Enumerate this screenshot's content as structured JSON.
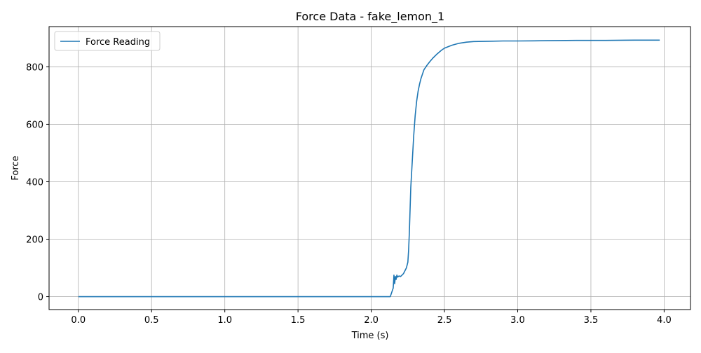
{
  "chart_data": {
    "type": "line",
    "title": "Force Data - fake_lemon_1",
    "xlabel": "Time (s)",
    "ylabel": "Force",
    "xlim": [
      -0.2,
      4.18
    ],
    "ylim": [
      -45,
      940
    ],
    "xticks": [
      0.0,
      0.5,
      1.0,
      1.5,
      2.0,
      2.5,
      3.0,
      3.5,
      4.0
    ],
    "xtick_labels": [
      "0.0",
      "0.5",
      "1.0",
      "1.5",
      "2.0",
      "2.5",
      "3.0",
      "3.5",
      "4.0"
    ],
    "yticks": [
      0,
      200,
      400,
      600,
      800
    ],
    "ytick_labels": [
      "0",
      "200",
      "400",
      "600",
      "800"
    ],
    "grid": true,
    "legend_position": "top-left",
    "series": [
      {
        "name": "Force Reading",
        "color": "#1f77b4",
        "x": [
          0.0,
          2.13,
          2.14,
          2.15,
          2.155,
          2.16,
          2.165,
          2.17,
          2.175,
          2.18,
          2.19,
          2.2,
          2.21,
          2.22,
          2.23,
          2.24,
          2.25,
          2.255,
          2.26,
          2.265,
          2.27,
          2.28,
          2.29,
          2.3,
          2.31,
          2.32,
          2.33,
          2.34,
          2.36,
          2.38,
          2.4,
          2.42,
          2.45,
          2.48,
          2.5,
          2.55,
          2.6,
          2.65,
          2.7,
          2.8,
          2.9,
          3.0,
          3.2,
          3.4,
          3.6,
          3.8,
          3.97
        ],
        "y": [
          0,
          0,
          15,
          30,
          75,
          45,
          70,
          60,
          75,
          68,
          72,
          70,
          75,
          80,
          90,
          100,
          120,
          160,
          220,
          300,
          380,
          470,
          560,
          630,
          680,
          715,
          740,
          760,
          790,
          805,
          818,
          830,
          845,
          858,
          865,
          875,
          882,
          886,
          888,
          889,
          890,
          890,
          891,
          892,
          892,
          893,
          893
        ]
      }
    ]
  }
}
